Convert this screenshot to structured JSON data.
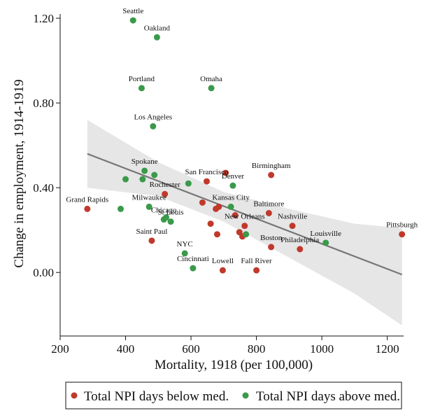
{
  "chart_data": {
    "type": "scatter",
    "title": "",
    "xlabel": "Mortality, 1918 (per 100,000)",
    "ylabel": "Change in employment, 1914-1919",
    "xlim": [
      200,
      1250
    ],
    "ylim": [
      -0.3,
      1.22
    ],
    "x_ticks": [
      200,
      400,
      600,
      800,
      1000,
      1200
    ],
    "y_ticks": [
      0.0,
      0.4,
      0.8,
      1.2
    ],
    "x_tick_labels": [
      "200",
      "400",
      "600",
      "800",
      "1000",
      "1200"
    ],
    "y_tick_labels": [
      "0.00",
      "0.40",
      "0.80",
      "1.20"
    ],
    "grid": false,
    "legend_position": "bottom",
    "colors": {
      "below": "#c0392b",
      "above": "#3a9a4a",
      "fit_line": "#777777",
      "ci_band": "#e6e6e6"
    },
    "series": [
      {
        "name": "Total NPI days below med.",
        "color": "#c0392b",
        "points": [
          {
            "x": 283,
            "y": 0.3
          },
          {
            "x": 480,
            "y": 0.15
          },
          {
            "x": 520,
            "y": 0.37
          },
          {
            "x": 635,
            "y": 0.33
          },
          {
            "x": 648,
            "y": 0.43
          },
          {
            "x": 660,
            "y": 0.23
          },
          {
            "x": 676,
            "y": 0.3
          },
          {
            "x": 680,
            "y": 0.18
          },
          {
            "x": 685,
            "y": 0.31
          },
          {
            "x": 697,
            "y": 0.01
          },
          {
            "x": 706,
            "y": 0.47
          },
          {
            "x": 735,
            "y": 0.27
          },
          {
            "x": 748,
            "y": 0.19
          },
          {
            "x": 757,
            "y": 0.17
          },
          {
            "x": 764,
            "y": 0.22
          },
          {
            "x": 800,
            "y": 0.01
          },
          {
            "x": 838,
            "y": 0.28
          },
          {
            "x": 845,
            "y": 0.46
          },
          {
            "x": 845,
            "y": 0.12
          },
          {
            "x": 910,
            "y": 0.22
          },
          {
            "x": 933,
            "y": 0.11
          },
          {
            "x": 1245,
            "y": 0.18
          }
        ]
      },
      {
        "name": "Total NPI days above med.",
        "color": "#3a9a4a",
        "points": [
          {
            "x": 423,
            "y": 1.19
          },
          {
            "x": 496,
            "y": 1.11
          },
          {
            "x": 449,
            "y": 0.87
          },
          {
            "x": 662,
            "y": 0.87
          },
          {
            "x": 484,
            "y": 0.69
          },
          {
            "x": 385,
            "y": 0.3
          },
          {
            "x": 400,
            "y": 0.44
          },
          {
            "x": 452,
            "y": 0.44
          },
          {
            "x": 458,
            "y": 0.48
          },
          {
            "x": 472,
            "y": 0.31
          },
          {
            "x": 488,
            "y": 0.46
          },
          {
            "x": 517,
            "y": 0.25
          },
          {
            "x": 524,
            "y": 0.26
          },
          {
            "x": 538,
            "y": 0.24
          },
          {
            "x": 581,
            "y": 0.09
          },
          {
            "x": 592,
            "y": 0.42
          },
          {
            "x": 606,
            "y": 0.02
          },
          {
            "x": 722,
            "y": 0.31
          },
          {
            "x": 728,
            "y": 0.41
          },
          {
            "x": 768,
            "y": 0.18
          },
          {
            "x": 1012,
            "y": 0.14
          }
        ]
      }
    ],
    "annotations": [
      {
        "text": "Seattle",
        "x": 423,
        "y": 1.19
      },
      {
        "text": "Oakland",
        "x": 496,
        "y": 1.11
      },
      {
        "text": "Portland",
        "x": 449,
        "y": 0.87
      },
      {
        "text": "Omaha",
        "x": 662,
        "y": 0.87
      },
      {
        "text": "Los Angeles",
        "x": 484,
        "y": 0.69
      },
      {
        "text": "Spokane",
        "x": 458,
        "y": 0.48
      },
      {
        "text": "San Francisco",
        "x": 648,
        "y": 0.43
      },
      {
        "text": "Denver",
        "x": 728,
        "y": 0.41
      },
      {
        "text": "Birmingham",
        "x": 845,
        "y": 0.46
      },
      {
        "text": "Rochester",
        "x": 520,
        "y": 0.37
      },
      {
        "text": "Grand Rapids",
        "x": 283,
        "y": 0.3
      },
      {
        "text": "Milwaukee",
        "x": 472,
        "y": 0.31
      },
      {
        "text": "Chicago",
        "x": 517,
        "y": 0.25
      },
      {
        "text": "St Louis",
        "x": 538,
        "y": 0.24
      },
      {
        "text": "Kansas City",
        "x": 722,
        "y": 0.31
      },
      {
        "text": "Baltimore",
        "x": 838,
        "y": 0.28
      },
      {
        "text": "Nashville",
        "x": 910,
        "y": 0.22
      },
      {
        "text": "New Orleans",
        "x": 764,
        "y": 0.22
      },
      {
        "text": "Louisville",
        "x": 1012,
        "y": 0.14
      },
      {
        "text": "Pittsburgh",
        "x": 1245,
        "y": 0.18
      },
      {
        "text": "Saint Paul",
        "x": 480,
        "y": 0.15
      },
      {
        "text": "NYC",
        "x": 581,
        "y": 0.09
      },
      {
        "text": "Boston",
        "x": 845,
        "y": 0.12
      },
      {
        "text": "Philadelphia",
        "x": 933,
        "y": 0.11
      },
      {
        "text": "Cincinnati",
        "x": 606,
        "y": 0.02
      },
      {
        "text": "Lowell",
        "x": 697,
        "y": 0.01
      },
      {
        "text": "Fall River",
        "x": 800,
        "y": 0.01
      }
    ],
    "fit_line": {
      "x": [
        283,
        1245
      ],
      "y": [
        0.56,
        -0.01
      ]
    },
    "ci_band": {
      "x": [
        283,
        500,
        700,
        900,
        1100,
        1245
      ],
      "lower": [
        0.4,
        0.36,
        0.24,
        0.07,
        -0.1,
        -0.25
      ],
      "upper": [
        0.72,
        0.52,
        0.38,
        0.3,
        0.23,
        0.21
      ]
    }
  }
}
